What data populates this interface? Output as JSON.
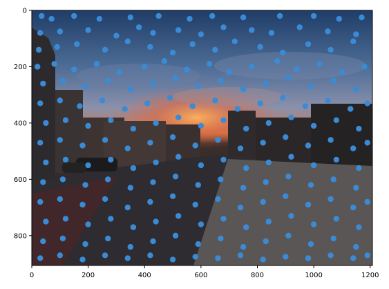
{
  "chart_data": {
    "type": "scatter",
    "title": "",
    "xlabel": "",
    "ylabel": "",
    "xlim": [
      0,
      1208
    ],
    "ylim": [
      906,
      0
    ],
    "y_axis_inverted": true,
    "background": "photograph: street scene at sunset with buildings, parked cars, road and sidewalk",
    "marker_color": "#3a8bd6",
    "x_ticks": [
      0,
      200,
      400,
      600,
      800,
      1000,
      1200
    ],
    "x_tick_labels": [
      "0",
      "200",
      "400",
      "600",
      "800",
      "1000",
      "1200"
    ],
    "y_ticks": [
      0,
      200,
      400,
      600,
      800
    ],
    "y_tick_labels": [
      "0",
      "200",
      "400",
      "600",
      "800"
    ],
    "series": [
      {
        "points": [
          [
            35,
            20
          ],
          [
            70,
            30
          ],
          [
            150,
            20
          ],
          [
            240,
            30
          ],
          [
            350,
            25
          ],
          [
            450,
            20
          ],
          [
            560,
            30
          ],
          [
            640,
            20
          ],
          [
            750,
            25
          ],
          [
            880,
            20
          ],
          [
            1000,
            20
          ],
          [
            1090,
            30
          ],
          [
            1170,
            25
          ],
          [
            30,
            80
          ],
          [
            100,
            75
          ],
          [
            200,
            70
          ],
          [
            300,
            90
          ],
          [
            380,
            60
          ],
          [
            430,
            80
          ],
          [
            520,
            70
          ],
          [
            600,
            85
          ],
          [
            680,
            60
          ],
          [
            780,
            70
          ],
          [
            850,
            80
          ],
          [
            950,
            60
          ],
          [
            1050,
            75
          ],
          [
            1150,
            85
          ],
          [
            25,
            140
          ],
          [
            90,
            130
          ],
          [
            160,
            120
          ],
          [
            260,
            140
          ],
          [
            340,
            110
          ],
          [
            420,
            130
          ],
          [
            500,
            150
          ],
          [
            570,
            120
          ],
          [
            650,
            140
          ],
          [
            720,
            110
          ],
          [
            810,
            130
          ],
          [
            890,
            150
          ],
          [
            980,
            120
          ],
          [
            1060,
            140
          ],
          [
            1140,
            110
          ],
          [
            20,
            200
          ],
          [
            80,
            190
          ],
          [
            150,
            210
          ],
          [
            230,
            190
          ],
          [
            310,
            220
          ],
          [
            400,
            200
          ],
          [
            470,
            180
          ],
          [
            550,
            210
          ],
          [
            630,
            190
          ],
          [
            700,
            220
          ],
          [
            780,
            200
          ],
          [
            870,
            180
          ],
          [
            940,
            210
          ],
          [
            1020,
            190
          ],
          [
            1100,
            220
          ],
          [
            1180,
            200
          ],
          [
            40,
            260
          ],
          [
            110,
            250
          ],
          [
            190,
            270
          ],
          [
            270,
            250
          ],
          [
            350,
            280
          ],
          [
            430,
            260
          ],
          [
            510,
            240
          ],
          [
            590,
            270
          ],
          [
            670,
            250
          ],
          [
            750,
            280
          ],
          [
            830,
            260
          ],
          [
            910,
            240
          ],
          [
            990,
            270
          ],
          [
            1070,
            250
          ],
          [
            1150,
            280
          ],
          [
            30,
            330
          ],
          [
            100,
            320
          ],
          [
            170,
            340
          ],
          [
            250,
            320
          ],
          [
            330,
            350
          ],
          [
            410,
            330
          ],
          [
            490,
            310
          ],
          [
            570,
            340
          ],
          [
            650,
            320
          ],
          [
            730,
            350
          ],
          [
            810,
            330
          ],
          [
            890,
            310
          ],
          [
            970,
            340
          ],
          [
            1050,
            320
          ],
          [
            1130,
            350
          ],
          [
            1190,
            330
          ],
          [
            50,
            400
          ],
          [
            120,
            390
          ],
          [
            200,
            410
          ],
          [
            280,
            390
          ],
          [
            360,
            420
          ],
          [
            440,
            400
          ],
          [
            520,
            380
          ],
          [
            600,
            410
          ],
          [
            680,
            390
          ],
          [
            760,
            420
          ],
          [
            840,
            400
          ],
          [
            920,
            380
          ],
          [
            1000,
            410
          ],
          [
            1080,
            390
          ],
          [
            1160,
            420
          ],
          [
            30,
            470
          ],
          [
            100,
            460
          ],
          [
            180,
            480
          ],
          [
            260,
            460
          ],
          [
            340,
            490
          ],
          [
            420,
            470
          ],
          [
            500,
            450
          ],
          [
            580,
            480
          ],
          [
            660,
            460
          ],
          [
            740,
            490
          ],
          [
            820,
            470
          ],
          [
            900,
            450
          ],
          [
            980,
            480
          ],
          [
            1060,
            460
          ],
          [
            1140,
            490
          ],
          [
            1190,
            470
          ],
          [
            50,
            540
          ],
          [
            120,
            530
          ],
          [
            200,
            550
          ],
          [
            280,
            530
          ],
          [
            360,
            560
          ],
          [
            440,
            540
          ],
          [
            520,
            520
          ],
          [
            600,
            550
          ],
          [
            680,
            530
          ],
          [
            760,
            560
          ],
          [
            840,
            540
          ],
          [
            920,
            520
          ],
          [
            1000,
            550
          ],
          [
            1080,
            530
          ],
          [
            1160,
            560
          ],
          [
            40,
            610
          ],
          [
            110,
            600
          ],
          [
            190,
            620
          ],
          [
            270,
            600
          ],
          [
            350,
            630
          ],
          [
            430,
            610
          ],
          [
            510,
            590
          ],
          [
            590,
            620
          ],
          [
            670,
            600
          ],
          [
            750,
            630
          ],
          [
            830,
            610
          ],
          [
            910,
            590
          ],
          [
            990,
            620
          ],
          [
            1070,
            600
          ],
          [
            1150,
            630
          ],
          [
            30,
            680
          ],
          [
            100,
            670
          ],
          [
            180,
            690
          ],
          [
            260,
            670
          ],
          [
            340,
            700
          ],
          [
            420,
            680
          ],
          [
            500,
            660
          ],
          [
            580,
            690
          ],
          [
            660,
            670
          ],
          [
            740,
            700
          ],
          [
            820,
            680
          ],
          [
            900,
            660
          ],
          [
            980,
            690
          ],
          [
            1060,
            670
          ],
          [
            1140,
            700
          ],
          [
            1190,
            680
          ],
          [
            50,
            750
          ],
          [
            120,
            740
          ],
          [
            200,
            760
          ],
          [
            280,
            740
          ],
          [
            360,
            770
          ],
          [
            440,
            750
          ],
          [
            520,
            730
          ],
          [
            600,
            760
          ],
          [
            680,
            740
          ],
          [
            760,
            770
          ],
          [
            840,
            750
          ],
          [
            920,
            730
          ],
          [
            1000,
            760
          ],
          [
            1080,
            740
          ],
          [
            1160,
            770
          ],
          [
            40,
            820
          ],
          [
            110,
            810
          ],
          [
            190,
            830
          ],
          [
            270,
            810
          ],
          [
            350,
            840
          ],
          [
            430,
            820
          ],
          [
            510,
            800
          ],
          [
            590,
            830
          ],
          [
            670,
            810
          ],
          [
            750,
            840
          ],
          [
            830,
            820
          ],
          [
            910,
            800
          ],
          [
            990,
            830
          ],
          [
            1070,
            810
          ],
          [
            1150,
            840
          ],
          [
            30,
            880
          ],
          [
            100,
            870
          ],
          [
            180,
            885
          ],
          [
            260,
            870
          ],
          [
            340,
            880
          ],
          [
            420,
            870
          ],
          [
            500,
            885
          ],
          [
            580,
            875
          ],
          [
            660,
            880
          ],
          [
            740,
            870
          ],
          [
            820,
            885
          ],
          [
            900,
            875
          ],
          [
            980,
            880
          ],
          [
            1060,
            870
          ],
          [
            1140,
            880
          ],
          [
            1190,
            870
          ]
        ]
      }
    ]
  }
}
